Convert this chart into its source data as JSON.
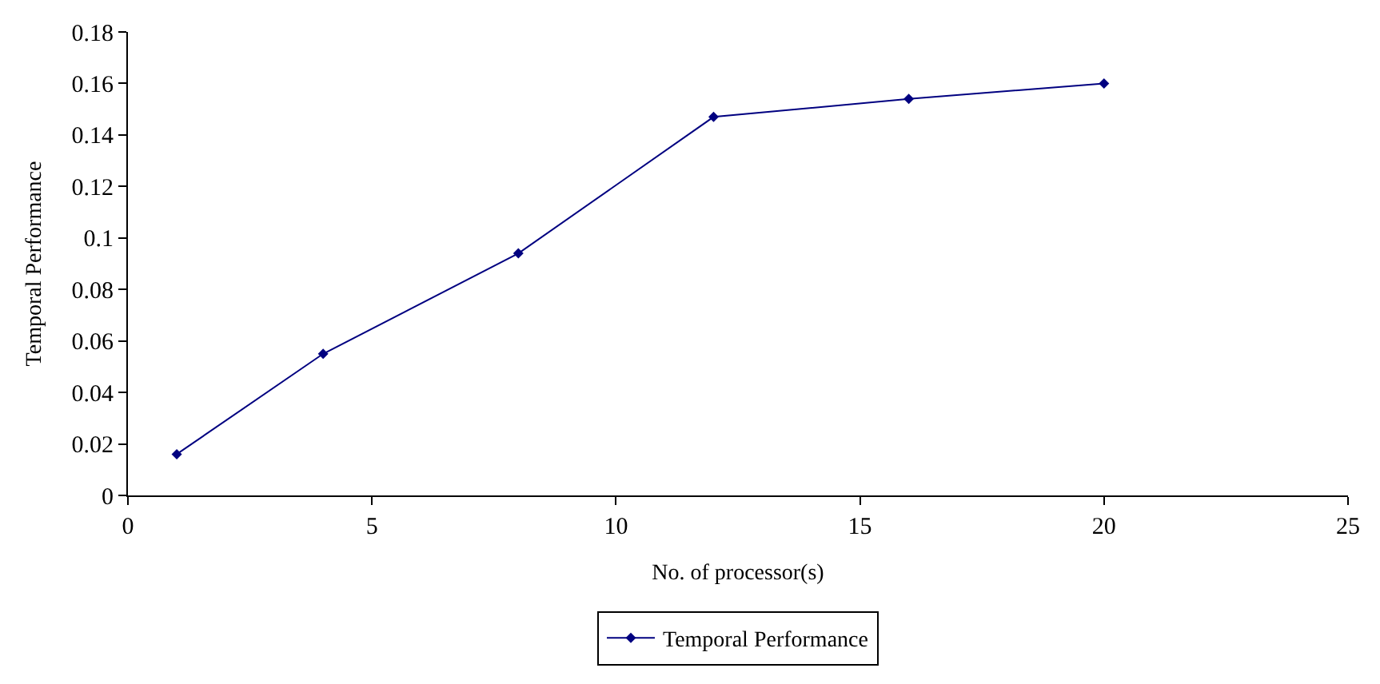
{
  "chart_data": {
    "type": "line",
    "xlabel": "No. of processor(s)",
    "ylabel": "Temporal Performance",
    "x": [
      1,
      4,
      8,
      12,
      16,
      20
    ],
    "series": [
      {
        "name": "Temporal Performance",
        "color": "#000080",
        "values": [
          0.016,
          0.055,
          0.094,
          0.147,
          0.154,
          0.16
        ]
      }
    ],
    "xlim": [
      0,
      25
    ],
    "xticks": [
      0,
      5,
      10,
      15,
      20,
      25
    ],
    "ylim": [
      0,
      0.18
    ],
    "yticks": [
      0,
      0.02,
      0.04,
      0.06,
      0.08,
      0.1,
      0.12,
      0.14,
      0.16,
      0.18
    ],
    "legend": "bottom",
    "marker": "diamond",
    "line_style": "solid"
  }
}
